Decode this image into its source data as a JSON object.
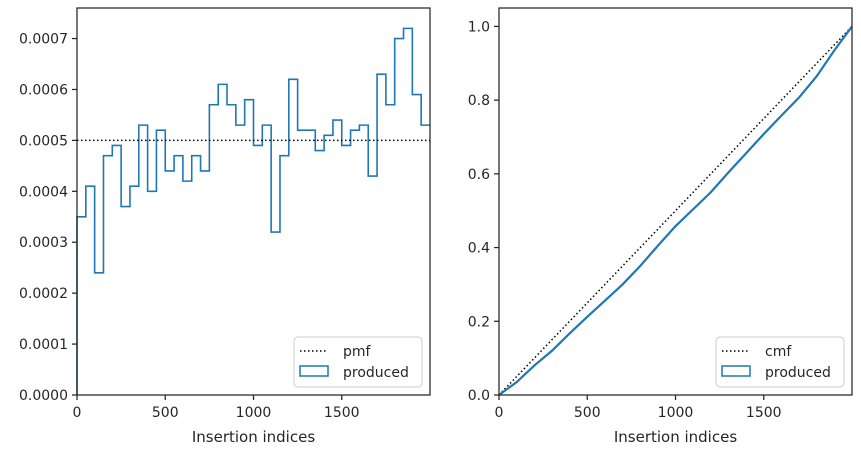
{
  "chart_data": [
    {
      "type": "histogram-step",
      "xlabel": "Insertion indices",
      "ylabel": "",
      "xlim": [
        0,
        2000
      ],
      "ylim": [
        0,
        0.00076
      ],
      "xticks": [
        0,
        500,
        1000,
        1500
      ],
      "xtick_labels": [
        "0",
        "500",
        "1000",
        "1500"
      ],
      "yticks": [
        0,
        0.0001,
        0.0002,
        0.0003,
        0.0004,
        0.0005,
        0.0006,
        0.0007
      ],
      "ytick_labels": [
        "0.0000",
        "0.0001",
        "0.0002",
        "0.0003",
        "0.0004",
        "0.0005",
        "0.0006",
        "0.0007"
      ],
      "bin_width": 50,
      "series": [
        {
          "name": "produced",
          "style": "step",
          "color": "#1f77b4",
          "bin_edges_start": 0,
          "values": [
            0.00035,
            0.00041,
            0.00024,
            0.00047,
            0.00049,
            0.00037,
            0.00041,
            0.00053,
            0.0004,
            0.00052,
            0.00044,
            0.00047,
            0.00042,
            0.00047,
            0.00044,
            0.00057,
            0.00061,
            0.00057,
            0.00053,
            0.00058,
            0.00049,
            0.00053,
            0.00032,
            0.00047,
            0.00062,
            0.00052,
            0.00052,
            0.00048,
            0.00051,
            0.00054,
            0.00049,
            0.00052,
            0.00053,
            0.00043,
            0.00063,
            0.00057,
            0.0007,
            0.00072,
            0.00059,
            0.00053
          ]
        },
        {
          "name": "pmf",
          "style": "dotted",
          "color": "#000000",
          "y_constant": 0.0005
        }
      ],
      "legend": {
        "placement": "lower-right",
        "entries": [
          "pmf",
          "produced"
        ]
      }
    },
    {
      "type": "line",
      "xlabel": "Insertion indices",
      "ylabel": "",
      "xlim": [
        0,
        2000
      ],
      "ylim": [
        0,
        1.05
      ],
      "xticks": [
        0,
        500,
        1000,
        1500
      ],
      "xtick_labels": [
        "0",
        "500",
        "1000",
        "1500"
      ],
      "yticks": [
        0,
        0.2,
        0.4,
        0.6,
        0.8,
        1.0
      ],
      "ytick_labels": [
        "0.0",
        "0.2",
        "0.4",
        "0.6",
        "0.8",
        "1.0"
      ],
      "series": [
        {
          "name": "cmf",
          "style": "dotted",
          "color": "#000000",
          "x": [
            0,
            2000
          ],
          "y": [
            0,
            1.0
          ]
        },
        {
          "name": "produced",
          "style": "solid",
          "color": "#1f77b4",
          "x": [
            0,
            100,
            200,
            300,
            400,
            500,
            600,
            700,
            800,
            900,
            1000,
            1100,
            1200,
            1300,
            1400,
            1500,
            1600,
            1700,
            1800,
            1900,
            2000
          ],
          "y": [
            0,
            0.035,
            0.08,
            0.12,
            0.167,
            0.212,
            0.256,
            0.3,
            0.35,
            0.405,
            0.458,
            0.504,
            0.55,
            0.604,
            0.656,
            0.708,
            0.758,
            0.807,
            0.865,
            0.935,
            1.0
          ]
        }
      ],
      "legend": {
        "placement": "lower-right",
        "entries": [
          "cmf",
          "produced"
        ]
      }
    }
  ]
}
